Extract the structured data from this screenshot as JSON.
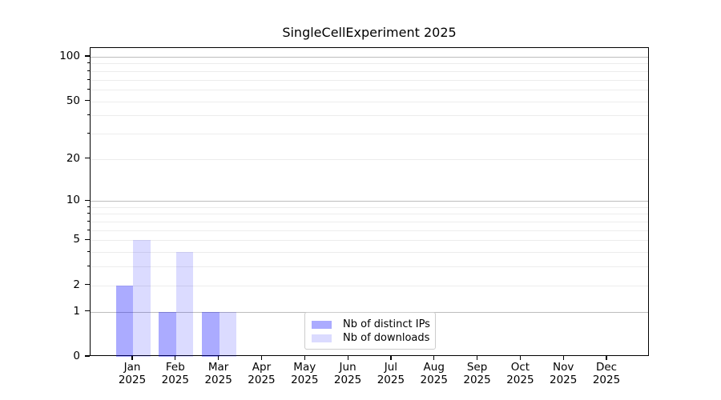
{
  "title": "SingleCellExperiment 2025",
  "chart_data": {
    "type": "bar",
    "title": "SingleCellExperiment 2025",
    "categories": [
      "Jan",
      "Feb",
      "Mar",
      "Apr",
      "May",
      "Jun",
      "Jul",
      "Aug",
      "Sep",
      "Oct",
      "Nov",
      "Dec"
    ],
    "year": "2025",
    "series": [
      {
        "name": "Nb of distinct IPs",
        "color": "#0000ff",
        "alpha": 0.33,
        "values": [
          2,
          1,
          1,
          0,
          0,
          0,
          0,
          0,
          0,
          0,
          0,
          0
        ]
      },
      {
        "name": "Nb of downloads",
        "color": "#0000ff",
        "alpha": 0.14,
        "values": [
          5,
          4,
          1,
          0,
          0,
          0,
          0,
          0,
          0,
          0,
          0,
          0
        ]
      }
    ],
    "yscale": "log1p",
    "ylim": [
      0,
      115
    ],
    "yticks": [
      0,
      1,
      2,
      5,
      10,
      20,
      50,
      100
    ],
    "grid": {
      "major_values": [
        1,
        10,
        100
      ],
      "minor_values": [
        2,
        3,
        4,
        5,
        6,
        7,
        8,
        9,
        20,
        30,
        40,
        50,
        60,
        70,
        80,
        90
      ]
    },
    "legend_position": "bottom-center",
    "xlabel": "",
    "ylabel": ""
  },
  "colors": {
    "background": "#ffffff",
    "axis": "#000000",
    "text": "#000000",
    "grid_major": "#bdbdbd",
    "grid_minor": "#ececec",
    "legend_border": "#cccccc"
  }
}
